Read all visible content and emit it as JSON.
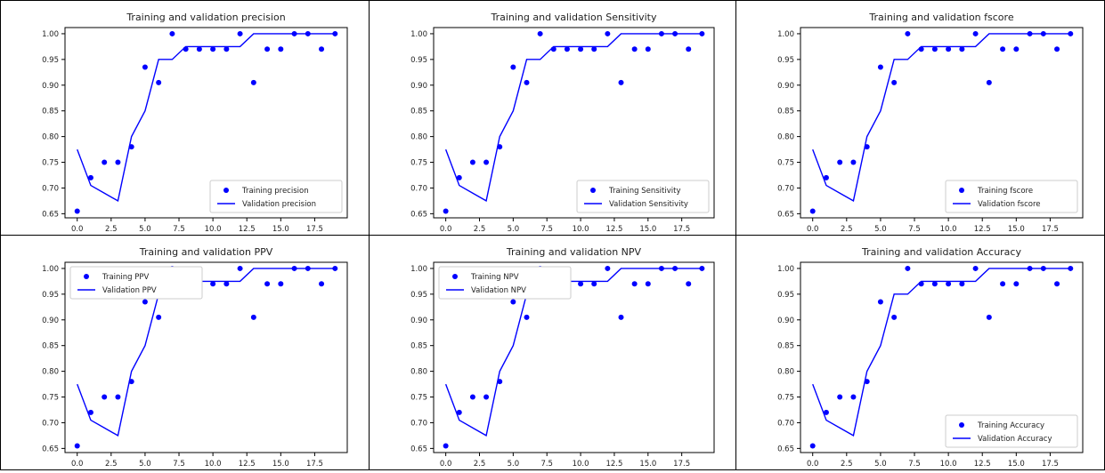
{
  "chart_data": [
    {
      "type": "line",
      "title": "Training and validation precision",
      "x": [
        0,
        1,
        2,
        3,
        4,
        5,
        6,
        7,
        8,
        9,
        10,
        11,
        12,
        13,
        14,
        15,
        16,
        17,
        18,
        19
      ],
      "series": [
        {
          "name": "Training precision",
          "style": "points",
          "values": [
            0.655,
            0.72,
            0.75,
            0.75,
            0.78,
            0.935,
            0.905,
            1.0,
            0.97,
            0.97,
            0.97,
            0.97,
            1.0,
            0.905,
            0.97,
            0.97,
            1.0,
            1.0,
            0.97,
            1.0
          ]
        },
        {
          "name": "Validation precision",
          "style": "line",
          "values": [
            0.775,
            0.705,
            0.69,
            0.675,
            0.8,
            0.85,
            0.95,
            0.95,
            0.975,
            0.975,
            0.975,
            0.975,
            0.975,
            1.0,
            1.0,
            1.0,
            1.0,
            1.0,
            1.0,
            1.0
          ]
        }
      ],
      "xticks": [
        "0.0",
        "2.5",
        "5.0",
        "7.5",
        "10.0",
        "12.5",
        "15.0",
        "17.5"
      ],
      "yticks": [
        "0.65",
        "0.70",
        "0.75",
        "0.80",
        "0.85",
        "0.90",
        "0.95",
        "1.00"
      ],
      "xlim": [
        -0.9,
        19.9
      ],
      "ylim": [
        0.642,
        1.012
      ],
      "legend": "lower-right"
    },
    {
      "type": "line",
      "title": "Training and validation Sensitivity",
      "x": [
        0,
        1,
        2,
        3,
        4,
        5,
        6,
        7,
        8,
        9,
        10,
        11,
        12,
        13,
        14,
        15,
        16,
        17,
        18,
        19
      ],
      "series": [
        {
          "name": "Training Sensitivity",
          "style": "points",
          "values": [
            0.655,
            0.72,
            0.75,
            0.75,
            0.78,
            0.935,
            0.905,
            1.0,
            0.97,
            0.97,
            0.97,
            0.97,
            1.0,
            0.905,
            0.97,
            0.97,
            1.0,
            1.0,
            0.97,
            1.0
          ]
        },
        {
          "name": "Validation Sensitivity",
          "style": "line",
          "values": [
            0.775,
            0.705,
            0.69,
            0.675,
            0.8,
            0.85,
            0.95,
            0.95,
            0.975,
            0.975,
            0.975,
            0.975,
            0.975,
            1.0,
            1.0,
            1.0,
            1.0,
            1.0,
            1.0,
            1.0
          ]
        }
      ],
      "xticks": [
        "0.0",
        "2.5",
        "5.0",
        "7.5",
        "10.0",
        "12.5",
        "15.0",
        "17.5"
      ],
      "yticks": [
        "0.65",
        "0.70",
        "0.75",
        "0.80",
        "0.85",
        "0.90",
        "0.95",
        "1.00"
      ],
      "xlim": [
        -0.9,
        19.9
      ],
      "ylim": [
        0.642,
        1.012
      ],
      "legend": "lower-right"
    },
    {
      "type": "line",
      "title": "Training and validation fscore",
      "x": [
        0,
        1,
        2,
        3,
        4,
        5,
        6,
        7,
        8,
        9,
        10,
        11,
        12,
        13,
        14,
        15,
        16,
        17,
        18,
        19
      ],
      "series": [
        {
          "name": "Training fscore",
          "style": "points",
          "values": [
            0.655,
            0.72,
            0.75,
            0.75,
            0.78,
            0.935,
            0.905,
            1.0,
            0.97,
            0.97,
            0.97,
            0.97,
            1.0,
            0.905,
            0.97,
            0.97,
            1.0,
            1.0,
            0.97,
            1.0
          ]
        },
        {
          "name": "Validation fscore",
          "style": "line",
          "values": [
            0.775,
            0.705,
            0.69,
            0.675,
            0.8,
            0.85,
            0.95,
            0.95,
            0.975,
            0.975,
            0.975,
            0.975,
            0.975,
            1.0,
            1.0,
            1.0,
            1.0,
            1.0,
            1.0,
            1.0
          ]
        }
      ],
      "xticks": [
        "0.0",
        "2.5",
        "5.0",
        "7.5",
        "10.0",
        "12.5",
        "15.0",
        "17.5"
      ],
      "yticks": [
        "0.65",
        "0.70",
        "0.75",
        "0.80",
        "0.85",
        "0.90",
        "0.95",
        "1.00"
      ],
      "xlim": [
        -0.9,
        19.9
      ],
      "ylim": [
        0.642,
        1.012
      ],
      "legend": "lower-right"
    },
    {
      "type": "line",
      "title": "Training and validation PPV",
      "x": [
        0,
        1,
        2,
        3,
        4,
        5,
        6,
        7,
        8,
        9,
        10,
        11,
        12,
        13,
        14,
        15,
        16,
        17,
        18,
        19
      ],
      "series": [
        {
          "name": "Training PPV",
          "style": "points",
          "values": [
            0.655,
            0.72,
            0.75,
            0.75,
            0.78,
            0.935,
            0.905,
            1.0,
            0.97,
            0.97,
            0.97,
            0.97,
            1.0,
            0.905,
            0.97,
            0.97,
            1.0,
            1.0,
            0.97,
            1.0
          ]
        },
        {
          "name": "Validation PPV",
          "style": "line",
          "values": [
            0.775,
            0.705,
            0.69,
            0.675,
            0.8,
            0.85,
            0.95,
            0.95,
            0.975,
            0.975,
            0.975,
            0.975,
            0.975,
            1.0,
            1.0,
            1.0,
            1.0,
            1.0,
            1.0,
            1.0
          ]
        }
      ],
      "xticks": [
        "0.0",
        "2.5",
        "5.0",
        "7.5",
        "10.0",
        "12.5",
        "15.0",
        "17.5"
      ],
      "yticks": [
        "0.65",
        "0.70",
        "0.75",
        "0.80",
        "0.85",
        "0.90",
        "0.95",
        "1.00"
      ],
      "xlim": [
        -0.9,
        19.9
      ],
      "ylim": [
        0.642,
        1.012
      ],
      "legend": "upper-left"
    },
    {
      "type": "line",
      "title": "Training and validation NPV",
      "x": [
        0,
        1,
        2,
        3,
        4,
        5,
        6,
        7,
        8,
        9,
        10,
        11,
        12,
        13,
        14,
        15,
        16,
        17,
        18,
        19
      ],
      "series": [
        {
          "name": "Training NPV",
          "style": "points",
          "values": [
            0.655,
            0.72,
            0.75,
            0.75,
            0.78,
            0.935,
            0.905,
            1.0,
            0.97,
            0.97,
            0.97,
            0.97,
            1.0,
            0.905,
            0.97,
            0.97,
            1.0,
            1.0,
            0.97,
            1.0
          ]
        },
        {
          "name": "Validation NPV",
          "style": "line",
          "values": [
            0.775,
            0.705,
            0.69,
            0.675,
            0.8,
            0.85,
            0.95,
            0.95,
            0.975,
            0.975,
            0.975,
            0.975,
            0.975,
            1.0,
            1.0,
            1.0,
            1.0,
            1.0,
            1.0,
            1.0
          ]
        }
      ],
      "xticks": [
        "0.0",
        "2.5",
        "5.0",
        "7.5",
        "10.0",
        "12.5",
        "15.0",
        "17.5"
      ],
      "yticks": [
        "0.65",
        "0.70",
        "0.75",
        "0.80",
        "0.85",
        "0.90",
        "0.95",
        "1.00"
      ],
      "xlim": [
        -0.9,
        19.9
      ],
      "ylim": [
        0.642,
        1.012
      ],
      "legend": "upper-left"
    },
    {
      "type": "line",
      "title": "Training and validation Accuracy",
      "x": [
        0,
        1,
        2,
        3,
        4,
        5,
        6,
        7,
        8,
        9,
        10,
        11,
        12,
        13,
        14,
        15,
        16,
        17,
        18,
        19
      ],
      "series": [
        {
          "name": "Training Accuracy",
          "style": "points",
          "values": [
            0.655,
            0.72,
            0.75,
            0.75,
            0.78,
            0.935,
            0.905,
            1.0,
            0.97,
            0.97,
            0.97,
            0.97,
            1.0,
            0.905,
            0.97,
            0.97,
            1.0,
            1.0,
            0.97,
            1.0
          ]
        },
        {
          "name": "Validation Accuracy",
          "style": "line",
          "values": [
            0.775,
            0.705,
            0.69,
            0.675,
            0.8,
            0.85,
            0.95,
            0.95,
            0.975,
            0.975,
            0.975,
            0.975,
            0.975,
            1.0,
            1.0,
            1.0,
            1.0,
            1.0,
            1.0,
            1.0
          ]
        }
      ],
      "xticks": [
        "0.0",
        "2.5",
        "5.0",
        "7.5",
        "10.0",
        "12.5",
        "15.0",
        "17.5"
      ],
      "yticks": [
        "0.65",
        "0.70",
        "0.75",
        "0.80",
        "0.85",
        "0.90",
        "0.95",
        "1.00"
      ],
      "xlim": [
        -0.9,
        19.9
      ],
      "ylim": [
        0.642,
        1.012
      ],
      "legend": "lower-right"
    }
  ],
  "colors": {
    "series": "#0000ff",
    "axes": "#000000",
    "text": "#222222"
  }
}
